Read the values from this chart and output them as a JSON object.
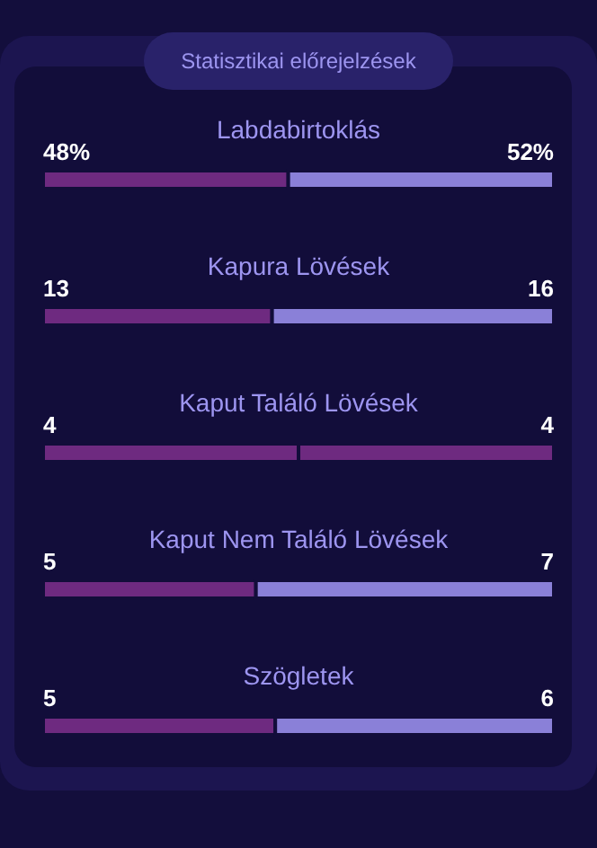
{
  "chart_data": [
    {
      "type": "bar",
      "title": "Statisztikai előrejelzések",
      "orientation": "horizontal",
      "stacked": true,
      "categories": [
        "Labdabirtoklás"
      ],
      "xlim": [
        0,
        100
      ],
      "series": [
        {
          "color": "#6e2a80",
          "values": [
            48
          ],
          "value_labels": [
            "48%"
          ]
        },
        {
          "color": "#8a80d8",
          "values": [
            52
          ],
          "value_labels": [
            "52%"
          ]
        }
      ]
    },
    {
      "type": "bar",
      "orientation": "horizontal",
      "stacked": true,
      "categories": [
        "Kapura Lövések"
      ],
      "xlim": [
        0,
        29
      ],
      "series": [
        {
          "color": "#6e2a80",
          "values": [
            13
          ],
          "value_labels": [
            "13"
          ]
        },
        {
          "color": "#8a80d8",
          "values": [
            16
          ],
          "value_labels": [
            "16"
          ]
        }
      ]
    },
    {
      "type": "bar",
      "orientation": "horizontal",
      "stacked": true,
      "categories": [
        "Kaput Találó Lövések"
      ],
      "xlim": [
        0,
        8
      ],
      "series": [
        {
          "color": "#6e2a80",
          "values": [
            4
          ],
          "value_labels": [
            "4"
          ]
        },
        {
          "color": "#6e2a80",
          "values": [
            4
          ],
          "value_labels": [
            "4"
          ]
        }
      ]
    },
    {
      "type": "bar",
      "orientation": "horizontal",
      "stacked": true,
      "categories": [
        "Kaput Nem Találó Lövések"
      ],
      "xlim": [
        0,
        12
      ],
      "series": [
        {
          "color": "#6e2a80",
          "values": [
            5
          ],
          "value_labels": [
            "5"
          ]
        },
        {
          "color": "#8a80d8",
          "values": [
            7
          ],
          "value_labels": [
            "7"
          ]
        }
      ]
    },
    {
      "type": "bar",
      "orientation": "horizontal",
      "stacked": true,
      "categories": [
        "Szögletek"
      ],
      "xlim": [
        0,
        11
      ],
      "series": [
        {
          "color": "#6e2a80",
          "values": [
            5
          ],
          "value_labels": [
            "5"
          ]
        },
        {
          "color": "#8a80d8",
          "values": [
            6
          ],
          "value_labels": [
            "6"
          ]
        }
      ]
    }
  ]
}
